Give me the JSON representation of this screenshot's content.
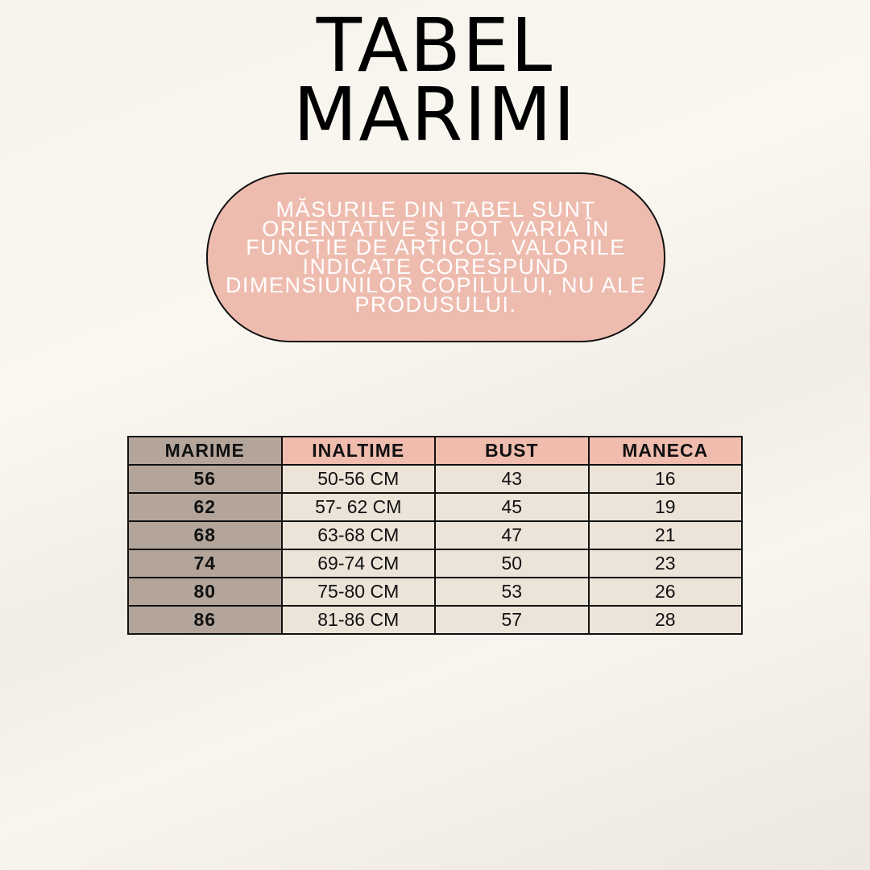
{
  "title": {
    "line1": "TABEL",
    "line2": "MARIMI"
  },
  "note": "MĂSURILE DIN TABEL SUNT ORIENTATIVE ȘI POT VARIA ÎN FUNCȚIE DE ARTICOL. VALORILE INDICATE CORESPUND DIMENSIUNILOR COPILULUI, NU ALE PRODUSULUI.",
  "colors": {
    "pill": "#eebcaf",
    "header": "#efbcae",
    "first_col": "#b4a59b",
    "cell": "#ece3d9"
  },
  "table": {
    "headers": [
      "MARIME",
      "INALTIME",
      "BUST",
      "MANECA"
    ],
    "rows": [
      [
        "56",
        "50-56 CM",
        "43",
        "16"
      ],
      [
        "62",
        "57- 62 CM",
        "45",
        "19"
      ],
      [
        "68",
        "63-68 CM",
        "47",
        "21"
      ],
      [
        "74",
        "69-74 CM",
        "50",
        "23"
      ],
      [
        "80",
        "75-80 CM",
        "53",
        "26"
      ],
      [
        "86",
        "81-86 CM",
        "57",
        "28"
      ]
    ]
  }
}
